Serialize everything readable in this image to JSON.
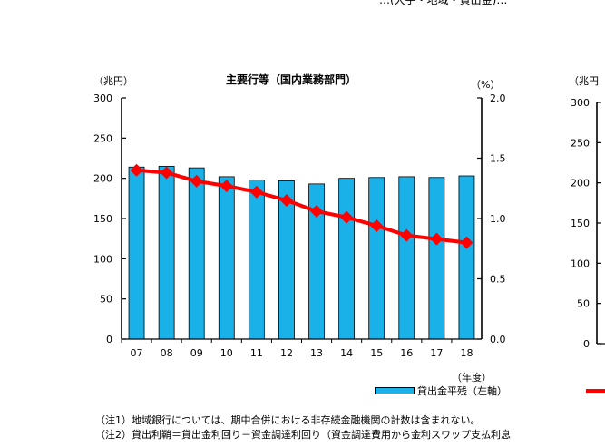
{
  "top_cut_text": "…(大手・地域・貸出金)…",
  "chart_data": [
    {
      "type": "bar+line",
      "title": "主要行等（国内業務部門）",
      "left_unit": "（兆円）",
      "right_unit": "（%）",
      "xlabel": "（年度）",
      "categories": [
        "07",
        "08",
        "09",
        "10",
        "11",
        "12",
        "13",
        "14",
        "15",
        "16",
        "17",
        "18"
      ],
      "left_axis": {
        "min": 0,
        "max": 300,
        "ticks": [
          "0",
          "50",
          "100",
          "150",
          "200",
          "250",
          "300"
        ]
      },
      "right_axis": {
        "min": 0,
        "max": 2.0,
        "ticks": [
          "0.0",
          "0.5",
          "1.0",
          "1.5",
          "2.0"
        ]
      },
      "series": [
        {
          "name": "貸出金平残（左軸）",
          "type": "bar",
          "axis": "left",
          "color": "#1ab0e8",
          "values": [
            214,
            215,
            213,
            202,
            198,
            197,
            193,
            200,
            201,
            202,
            201,
            203
          ]
        },
        {
          "name": "",
          "type": "line",
          "axis": "right",
          "color": "#ff0000",
          "values": [
            1.4,
            1.38,
            1.31,
            1.27,
            1.22,
            1.15,
            1.06,
            1.01,
            0.94,
            0.86,
            0.83,
            0.8
          ]
        }
      ],
      "legend": {
        "position": "bottom-right"
      }
    },
    {
      "type": "bar+line",
      "note": "second chart, cut off at right edge",
      "left_unit": "（兆円",
      "left_axis": {
        "ticks": [
          "0",
          "50",
          "100",
          "150",
          "200",
          "250",
          "300"
        ]
      }
    }
  ],
  "notes": [
    "（注1）地域銀行については、期中合併における非存続金融機関の計数は含まれない。",
    "（注2）貸出利鞘＝貸出金利回り－資金調達利回り（資金調達費用から金利スワップ支払利息"
  ]
}
